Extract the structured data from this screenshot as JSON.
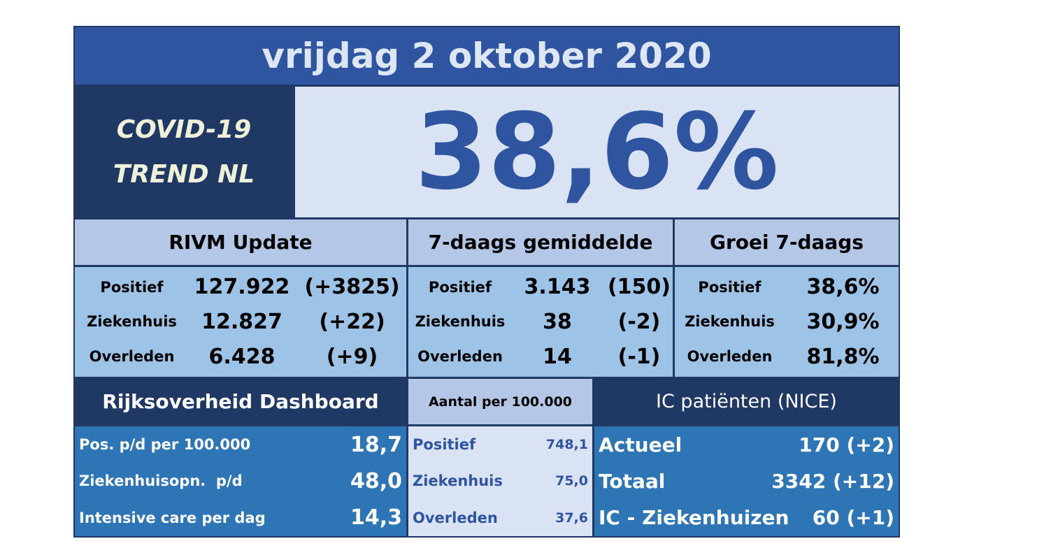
{
  "header": {
    "title": "vrijdag 2 oktober 2020"
  },
  "hero": {
    "label_lines": [
      "COVID-19",
      "TREND NL"
    ],
    "value": "38,6%"
  },
  "sections": [
    {
      "title": "RIVM Update",
      "rows": [
        [
          "Positief",
          "127.922",
          "(+3825)"
        ],
        [
          "Ziekenhuis",
          "12.827",
          "(+22)"
        ],
        [
          "Overleden",
          "6.428",
          "(+9)"
        ]
      ]
    },
    {
      "title": "7-daags gemiddelde",
      "rows": [
        [
          "Positief",
          "3.143",
          "(150)"
        ],
        [
          "Ziekenhuis",
          "38",
          "(-2)"
        ],
        [
          "Overleden",
          "14",
          "(-1)"
        ]
      ]
    },
    {
      "title": "Groei 7-daags",
      "rows": [
        [
          "Positief",
          "38,6%"
        ],
        [
          "Ziekenhuis",
          "30,9%"
        ],
        [
          "Overleden",
          "81,8%"
        ]
      ]
    }
  ],
  "bottom": [
    {
      "title": "Rijksoverheid Dashboard",
      "rows": [
        [
          "Pos. p/d per 100.000",
          "18,7"
        ],
        [
          "Ziekenhuisopn.  p/d",
          "48,0"
        ],
        [
          "Intensive care per dag",
          "14,3"
        ]
      ]
    },
    {
      "title": "Aantal per 100.000",
      "rows": [
        [
          "Positief",
          "748,1"
        ],
        [
          "Ziekenhuis",
          "75,0"
        ],
        [
          "Overleden",
          "37,6"
        ]
      ]
    },
    {
      "title": "IC patiënten (NICE)",
      "rows": [
        [
          "Actueel",
          "170 (+2)"
        ],
        [
          "Totaal",
          "3342 (+12)"
        ],
        [
          "IC - Ziekenhuizen",
          "60 (+1)"
        ]
      ]
    }
  ]
}
